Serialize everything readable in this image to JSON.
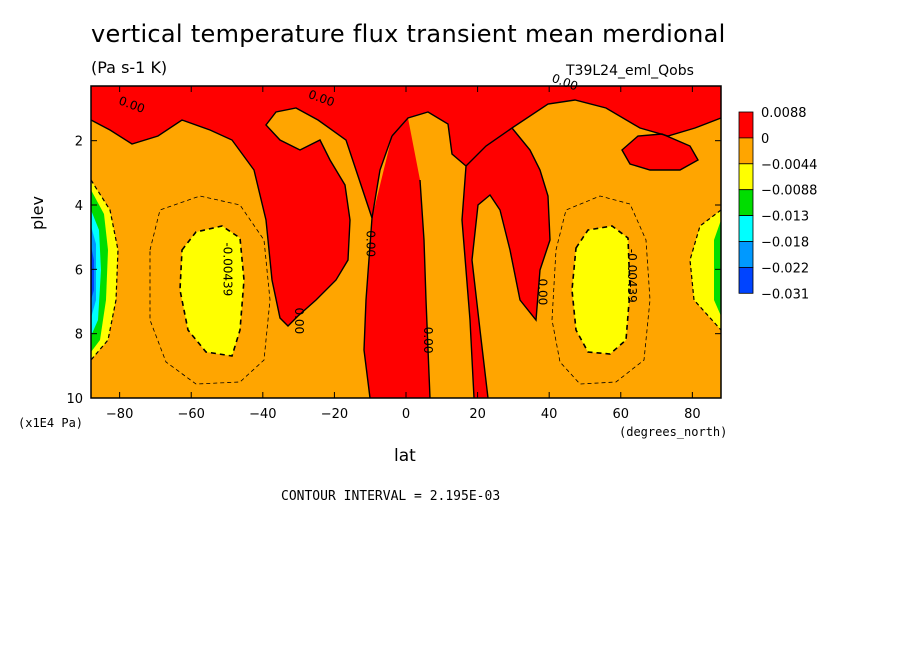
{
  "chart_data": {
    "type": "contour",
    "title": "vertical temperature flux transient mean merdional",
    "units": "(Pa s-1 K)",
    "dataset": "T39L24_eml_Qobs",
    "xlabel": "lat",
    "x_units": "(degrees_north)",
    "ylabel": "plev",
    "y_units": "(x1E4 Pa)",
    "xlim": [
      -88,
      88
    ],
    "ylim": [
      10,
      0.3
    ],
    "x_ticks": [
      -80,
      -60,
      -40,
      -20,
      0,
      20,
      40,
      60,
      80
    ],
    "x_tick_labels": [
      "-80",
      "-60",
      "-40",
      "-20",
      "0",
      "20",
      "40",
      "60",
      "80"
    ],
    "y_ticks": [
      2,
      4,
      6,
      8,
      10
    ],
    "y_tick_labels": [
      "2",
      "4",
      "6",
      "8",
      "10"
    ],
    "contour_interval_text": "CONTOUR INTERVAL = 2.195E-03",
    "colorbar": {
      "labels": [
        "0.0088",
        "0",
        "-0.0044",
        "-0.0088",
        "-0.013",
        "-0.018",
        "-0.022",
        "-0.031"
      ],
      "colors": [
        "#ff0000",
        "#ffa500",
        "#ffff00",
        "#00dd00",
        "#00ffff",
        "#0099ff",
        "#0044ff"
      ]
    },
    "contour_labels": [
      {
        "text": "0.00",
        "lat": -77,
        "plev": 1.0
      },
      {
        "text": "0.00",
        "lat": -24,
        "plev": 0.8
      },
      {
        "text": "0.00",
        "lat": 44,
        "plev": 0.3
      },
      {
        "text": "0.00",
        "lat": -11,
        "plev": 5.2
      },
      {
        "text": "0.00",
        "lat": 5,
        "plev": 8.2
      },
      {
        "text": "0.00",
        "lat": 37,
        "plev": 6.7
      },
      {
        "text": "0.00",
        "lat": -31,
        "plev": 7.6
      },
      {
        "text": "-0.00439",
        "lat": -51,
        "plev": 6.0
      },
      {
        "text": "-0.00439",
        "lat": 62,
        "plev": 6.2
      }
    ]
  }
}
